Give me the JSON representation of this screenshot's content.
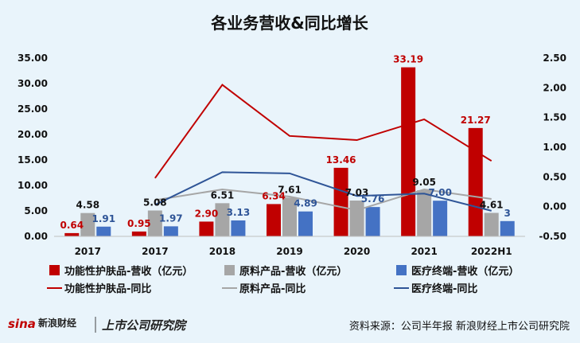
{
  "chart_data": {
    "type": "bar+line",
    "title": "各业务营收&同比增长",
    "categories": [
      "2017",
      "2017",
      "2018",
      "2019",
      "2020",
      "2021",
      "2022H1"
    ],
    "left_axis": {
      "ylim": [
        0,
        35
      ],
      "ticks": [
        "0.00",
        "5.00",
        "10.00",
        "15.00",
        "20.00",
        "25.00",
        "30.00",
        "35.00"
      ]
    },
    "right_axis": {
      "ylim": [
        -0.5,
        2.5
      ],
      "ticks": [
        "-0.50",
        "0.00",
        "0.50",
        "1.00",
        "1.50",
        "2.00",
        "2.50"
      ]
    },
    "bar_series": [
      {
        "name": "功能性护肤品-营收（亿元）",
        "color": "#c00000",
        "label_color": "#c00000",
        "values": [
          0.64,
          0.95,
          2.9,
          6.34,
          13.46,
          33.19,
          21.27
        ],
        "labels": [
          "0.64",
          "0.95",
          "2.90",
          "6.34",
          "13.46",
          "33.19",
          "21.27"
        ]
      },
      {
        "name": "原料产品-营收（亿元）",
        "color": "#a6a6a6",
        "label_color": "#111111",
        "values": [
          4.58,
          5.08,
          6.51,
          7.61,
          7.03,
          9.05,
          4.61
        ],
        "labels": [
          "4.58",
          "5.08",
          "6.51",
          "7.61",
          "7.03",
          "9.05",
          "4.61"
        ]
      },
      {
        "name": "医疗终端-营收（亿元）",
        "color": "#4472c4",
        "label_color": "#2f5597",
        "values": [
          1.91,
          1.97,
          3.13,
          4.89,
          5.76,
          7.0,
          3
        ],
        "labels": [
          "1.91",
          "1.97",
          "3.13",
          "4.89",
          "5.76",
          "7.00",
          "3"
        ]
      }
    ],
    "line_series": [
      {
        "name": "功能性护肤品-同比",
        "color": "#c00000",
        "values": [
          null,
          0.48,
          2.05,
          1.19,
          1.12,
          1.47,
          0.77
        ]
      },
      {
        "name": "原料产品-同比",
        "color": "#a6a6a6",
        "values": [
          null,
          0.11,
          0.29,
          0.17,
          -0.06,
          0.29,
          0.13
        ]
      },
      {
        "name": "医疗终端-同比",
        "color": "#2f5597",
        "values": [
          null,
          0.03,
          0.58,
          0.56,
          0.18,
          0.22,
          -0.07
        ]
      }
    ],
    "legend_position": "bottom",
    "grid": false
  },
  "footer": {
    "source": "资料来源：公司半年报 新浪财经上市公司研究院",
    "logo_text": "新浪财经",
    "brand_text": "上市公司研究院"
  }
}
